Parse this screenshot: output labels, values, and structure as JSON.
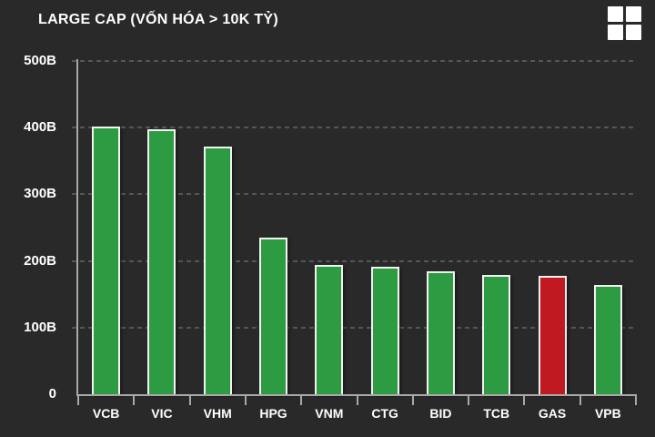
{
  "header": {
    "title": "LARGE CAP (VỐN HÓA > 10K TỶ)",
    "menu_icon": "grid-icon"
  },
  "colors": {
    "background": "#292929",
    "text": "#ffffff",
    "bar_green": "#2d9b41",
    "bar_red": "#c01922",
    "bar_border": "#f2f2f2",
    "axis": "#a8a8a8",
    "gridline": "#555555"
  },
  "chart_data": {
    "type": "bar",
    "title": "LARGE CAP (VỐN HÓA > 10K TỶ)",
    "categories": [
      "VCB",
      "VIC",
      "VHM",
      "HPG",
      "VNM",
      "CTG",
      "BID",
      "TCB",
      "GAS",
      "VPB"
    ],
    "values": [
      402,
      397,
      371,
      235,
      194,
      191,
      184,
      179,
      178,
      164
    ],
    "unit": "B",
    "bar_colors": [
      "green",
      "green",
      "green",
      "green",
      "green",
      "green",
      "green",
      "green",
      "red",
      "green"
    ],
    "ylim": [
      0,
      500
    ],
    "ytick_values": [
      500,
      400,
      300,
      200,
      100,
      0
    ],
    "ytick_labels": [
      "500B",
      "400B",
      "300B",
      "200B",
      "100B",
      "0"
    ],
    "grid": "horizontal-dashed",
    "legend": "none",
    "xlabel": "",
    "ylabel": ""
  }
}
